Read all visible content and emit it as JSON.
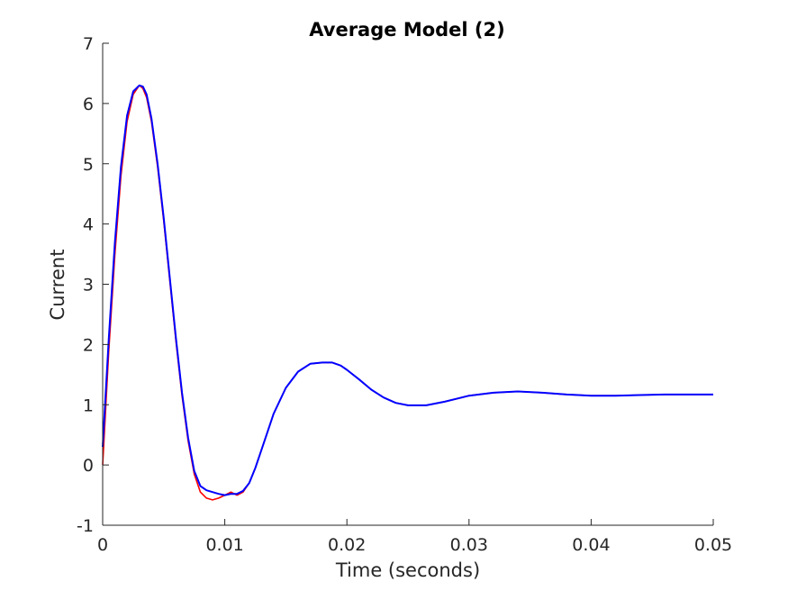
{
  "chart_data": {
    "type": "line",
    "title": "Average Model (2)",
    "xlabel": "Time (seconds)",
    "ylabel": "Current",
    "xlim": [
      0,
      0.05
    ],
    "ylim": [
      -1,
      7
    ],
    "xticks": [
      0,
      0.01,
      0.02,
      0.03,
      0.04,
      0.05
    ],
    "xtick_labels": [
      "0",
      "0.01",
      "0.02",
      "0.03",
      "0.04",
      "0.05"
    ],
    "yticks": [
      -1,
      0,
      1,
      2,
      3,
      4,
      5,
      6,
      7
    ],
    "ytick_labels": [
      "-1",
      "0",
      "1",
      "2",
      "3",
      "4",
      "5",
      "6",
      "7"
    ],
    "grid": false,
    "series": [
      {
        "color": "#ff0000",
        "x": [
          0,
          0.0005,
          0.001,
          0.0015,
          0.002,
          0.0025,
          0.003,
          0.0033,
          0.0036,
          0.004,
          0.0045,
          0.005,
          0.0055,
          0.006,
          0.0065,
          0.007,
          0.0075,
          0.008,
          0.0085,
          0.009,
          0.0095,
          0.01,
          0.0105,
          0.011,
          0.0115,
          0.012,
          0.0125,
          0.013,
          0.0135,
          0.014,
          0.015,
          0.016,
          0.017,
          0.018,
          0.0188,
          0.0195,
          0.02,
          0.021,
          0.022,
          0.023,
          0.024,
          0.025,
          0.0265,
          0.028,
          0.03,
          0.032,
          0.034,
          0.036,
          0.038,
          0.04,
          0.042,
          0.044,
          0.046,
          0.048,
          0.05
        ],
        "y": [
          0,
          1.9,
          3.5,
          4.8,
          5.7,
          6.15,
          6.3,
          6.25,
          6.1,
          5.7,
          4.95,
          4.05,
          3.05,
          2.05,
          1.15,
          0.4,
          -0.15,
          -0.45,
          -0.55,
          -0.58,
          -0.55,
          -0.5,
          -0.45,
          -0.5,
          -0.45,
          -0.3,
          -0.05,
          0.25,
          0.55,
          0.85,
          1.28,
          1.55,
          1.68,
          1.7,
          1.7,
          1.65,
          1.58,
          1.42,
          1.25,
          1.12,
          1.03,
          0.99,
          0.99,
          1.05,
          1.15,
          1.2,
          1.22,
          1.2,
          1.17,
          1.15,
          1.15,
          1.16,
          1.17,
          1.17,
          1.17
        ]
      },
      {
        "color": "#0000ff",
        "x": [
          0,
          0.0005,
          0.001,
          0.0015,
          0.002,
          0.0025,
          0.003,
          0.0033,
          0.0036,
          0.004,
          0.0045,
          0.005,
          0.0055,
          0.006,
          0.0065,
          0.007,
          0.0075,
          0.008,
          0.0085,
          0.009,
          0.0095,
          0.01,
          0.0105,
          0.011,
          0.0115,
          0.012,
          0.0125,
          0.013,
          0.0135,
          0.014,
          0.015,
          0.016,
          0.017,
          0.018,
          0.0188,
          0.0195,
          0.02,
          0.021,
          0.022,
          0.023,
          0.024,
          0.025,
          0.0265,
          0.028,
          0.03,
          0.032,
          0.034,
          0.036,
          0.038,
          0.04,
          0.042,
          0.044,
          0.046,
          0.048,
          0.05
        ],
        "y": [
          0.3,
          2.1,
          3.7,
          4.95,
          5.8,
          6.2,
          6.3,
          6.28,
          6.15,
          5.75,
          5.0,
          4.1,
          3.1,
          2.1,
          1.2,
          0.45,
          -0.1,
          -0.35,
          -0.42,
          -0.45,
          -0.48,
          -0.5,
          -0.48,
          -0.48,
          -0.43,
          -0.3,
          -0.05,
          0.25,
          0.55,
          0.85,
          1.28,
          1.55,
          1.68,
          1.7,
          1.7,
          1.65,
          1.58,
          1.42,
          1.25,
          1.12,
          1.03,
          0.99,
          0.99,
          1.05,
          1.15,
          1.2,
          1.22,
          1.2,
          1.17,
          1.15,
          1.15,
          1.16,
          1.17,
          1.17,
          1.17
        ]
      }
    ]
  }
}
